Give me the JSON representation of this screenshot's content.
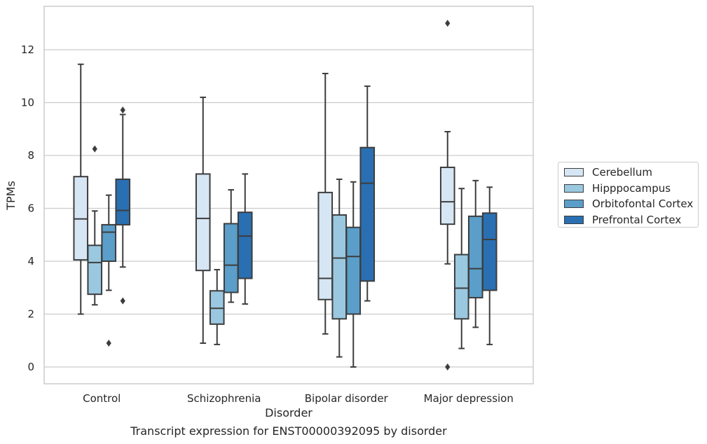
{
  "chart_data": {
    "type": "box",
    "xlabel": "Disorder",
    "ylabel": "TPMs",
    "caption": "Transcript expression for ENST00000392095 by disorder",
    "ylim": [
      -0.65,
      13.6
    ],
    "yticks": [
      0,
      2,
      4,
      6,
      8,
      10,
      12
    ],
    "grid": "horizontal",
    "legend_position": "right",
    "categories": [
      "Control",
      "Schizophrenia",
      "Bipolar disorder",
      "Major depression"
    ],
    "series": [
      {
        "name": "Cerebellum",
        "color": "#d6e6f4",
        "boxes": [
          {
            "whisker_low": 2.0,
            "q1": 4.05,
            "median": 5.6,
            "q3": 7.2,
            "whisker_high": 11.45,
            "outliers": []
          },
          {
            "whisker_low": 0.9,
            "q1": 3.65,
            "median": 5.62,
            "q3": 7.3,
            "whisker_high": 10.2,
            "outliers": []
          },
          {
            "whisker_low": 1.25,
            "q1": 2.55,
            "median": 3.35,
            "q3": 6.6,
            "whisker_high": 11.1,
            "outliers": []
          },
          {
            "whisker_low": 3.9,
            "q1": 5.4,
            "median": 6.25,
            "q3": 7.55,
            "whisker_high": 8.9,
            "outliers": [
              0.0,
              13.0
            ]
          }
        ]
      },
      {
        "name": "Hipppocampus",
        "color": "#9ac8e0",
        "boxes": [
          {
            "whisker_low": 2.35,
            "q1": 2.75,
            "median": 3.95,
            "q3": 4.6,
            "whisker_high": 5.9,
            "outliers": [
              8.25
            ]
          },
          {
            "whisker_low": 0.85,
            "q1": 1.62,
            "median": 2.22,
            "q3": 2.88,
            "whisker_high": 3.68,
            "outliers": []
          },
          {
            "whisker_low": 0.38,
            "q1": 1.82,
            "median": 4.12,
            "q3": 5.75,
            "whisker_high": 7.1,
            "outliers": []
          },
          {
            "whisker_low": 0.7,
            "q1": 1.82,
            "median": 2.98,
            "q3": 4.25,
            "whisker_high": 6.75,
            "outliers": []
          }
        ]
      },
      {
        "name": "Orbitofontal Cortex",
        "color": "#5a9ec9",
        "boxes": [
          {
            "whisker_low": 2.9,
            "q1": 4.0,
            "median": 5.1,
            "q3": 5.38,
            "whisker_high": 6.5,
            "outliers": [
              0.9
            ]
          },
          {
            "whisker_low": 2.45,
            "q1": 2.82,
            "median": 3.85,
            "q3": 5.42,
            "whisker_high": 6.7,
            "outliers": []
          },
          {
            "whisker_low": 0.0,
            "q1": 2.0,
            "median": 4.18,
            "q3": 5.28,
            "whisker_high": 7.0,
            "outliers": []
          },
          {
            "whisker_low": 1.5,
            "q1": 2.62,
            "median": 3.72,
            "q3": 5.7,
            "whisker_high": 7.05,
            "outliers": []
          }
        ]
      },
      {
        "name": "Prefrontal Cortex",
        "color": "#2a6fb2",
        "boxes": [
          {
            "whisker_low": 3.78,
            "q1": 5.38,
            "median": 5.92,
            "q3": 7.1,
            "whisker_high": 9.55,
            "outliers": [
              2.5,
              9.72
            ]
          },
          {
            "whisker_low": 2.38,
            "q1": 3.35,
            "median": 4.95,
            "q3": 5.85,
            "whisker_high": 7.3,
            "outliers": []
          },
          {
            "whisker_low": 2.5,
            "q1": 3.25,
            "median": 6.95,
            "q3": 8.3,
            "whisker_high": 10.62,
            "outliers": []
          },
          {
            "whisker_low": 0.85,
            "q1": 2.9,
            "median": 4.82,
            "q3": 5.82,
            "whisker_high": 6.8,
            "outliers": []
          }
        ]
      }
    ]
  }
}
